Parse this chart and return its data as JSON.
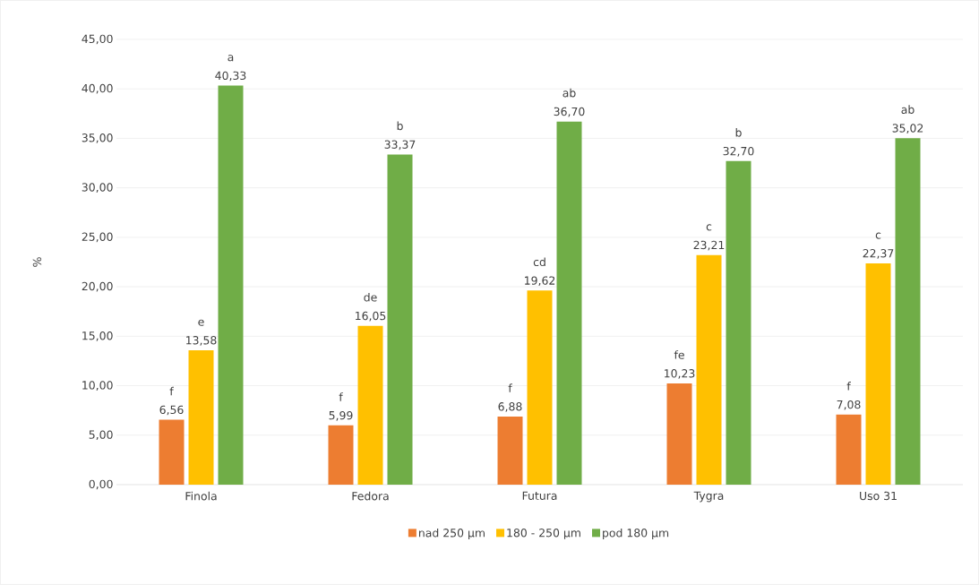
{
  "chart_data": {
    "type": "bar",
    "ylabel": "%",
    "categories": [
      "Finola",
      "Fedora",
      "Futura",
      "Tygra",
      "Uso 31"
    ],
    "series": [
      {
        "name": "nad 250 µm",
        "color": "#ed7d31",
        "values": [
          6.56,
          5.99,
          6.88,
          10.23,
          7.08
        ],
        "value_labels": [
          "6,56",
          "5,99",
          "6,88",
          "10,23",
          "7,08"
        ]
      },
      {
        "name": "180 - 250 µm",
        "color": "#ffc000",
        "values": [
          13.58,
          16.05,
          19.62,
          23.21,
          22.37
        ],
        "value_labels": [
          "13,58",
          "16,05",
          "19,62",
          "23,21",
          "22,37"
        ]
      },
      {
        "name": "pod 180 µm",
        "color": "#70ad47",
        "values": [
          40.33,
          33.37,
          36.7,
          32.7,
          35.02
        ],
        "value_labels": [
          "40,33",
          "33,37",
          "36,70",
          "32,70",
          "35,02"
        ]
      }
    ],
    "ylim": [
      0,
      45
    ],
    "yticks": [
      {
        "value": 0,
        "label": "0,00"
      },
      {
        "value": 5,
        "label": "5,00"
      },
      {
        "value": 10,
        "label": "10,00"
      },
      {
        "value": 15,
        "label": "15,00"
      },
      {
        "value": 20,
        "label": "20,00"
      },
      {
        "value": 25,
        "label": "25,00"
      },
      {
        "value": 30,
        "label": "30,00"
      },
      {
        "value": 35,
        "label": "35,00"
      },
      {
        "value": 40,
        "label": "40,00"
      },
      {
        "value": 45,
        "label": "45,00"
      }
    ],
    "annotations": [
      "f",
      "e",
      "a",
      "f",
      "de",
      "b",
      "f",
      "cd",
      "ab",
      "fe",
      "c",
      "b",
      "f",
      "c",
      "ab"
    ],
    "grid": "y",
    "legend": "bottom"
  }
}
